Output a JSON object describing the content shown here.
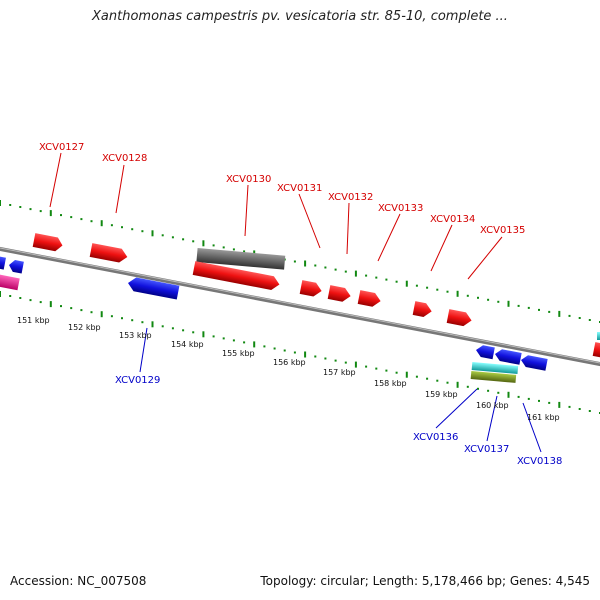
{
  "title": "Xanthomonas campestris pv. vesicatoria str. 85-10, complete ...",
  "footer": {
    "accession": "Accession: NC_007508",
    "summary": "Topology: circular; Length: 5,178,466 bp; Genes: 4,545"
  },
  "scale_labels": [
    "151 kbp",
    "152 kbp",
    "153 kbp",
    "154 kbp",
    "155 kbp",
    "156 kbp",
    "157 kbp",
    "158 kbp",
    "159 kbp",
    "160 kbp",
    "161 kbp"
  ],
  "forward_gene_labels": [
    "XCV0127",
    "XCV0128",
    "XCV0130",
    "XCV0131",
    "XCV0132",
    "XCV0133",
    "XCV0134",
    "XCV0135"
  ],
  "reverse_gene_labels": [
    "XCV0129",
    "XCV0136",
    "XCV0137",
    "XCV0138"
  ],
  "colors": {
    "forward_cds": "#ee1111",
    "reverse_cds": "#1111dd",
    "gene_grey": "#666666",
    "pink_feature": "#ee2299",
    "cyan_feature": "#22cccc",
    "olive_feature": "#779922",
    "backbone": "#8a8a8a",
    "tick_green": "#118811"
  }
}
